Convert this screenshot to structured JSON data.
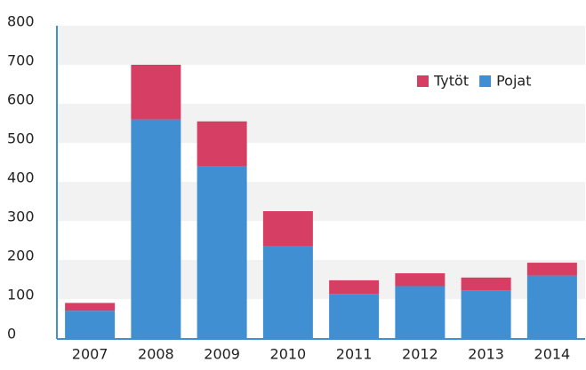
{
  "chart_data": {
    "type": "stacked_bar",
    "categories": [
      "2007",
      "2008",
      "2009",
      "2010",
      "2011",
      "2012",
      "2013",
      "2014"
    ],
    "series": [
      {
        "name": "Pojat",
        "color": "#3f8fd2",
        "values": [
          70,
          560,
          440,
          235,
          113,
          133,
          122,
          160
        ]
      },
      {
        "name": "Tytöt",
        "color": "#d63e63",
        "values": [
          20,
          140,
          115,
          90,
          35,
          33,
          33,
          33
        ]
      }
    ],
    "ylim": [
      0,
      800
    ],
    "yticks": [
      0,
      100,
      200,
      300,
      400,
      500,
      600,
      700,
      800
    ],
    "grid": true,
    "legend": "top-right"
  }
}
